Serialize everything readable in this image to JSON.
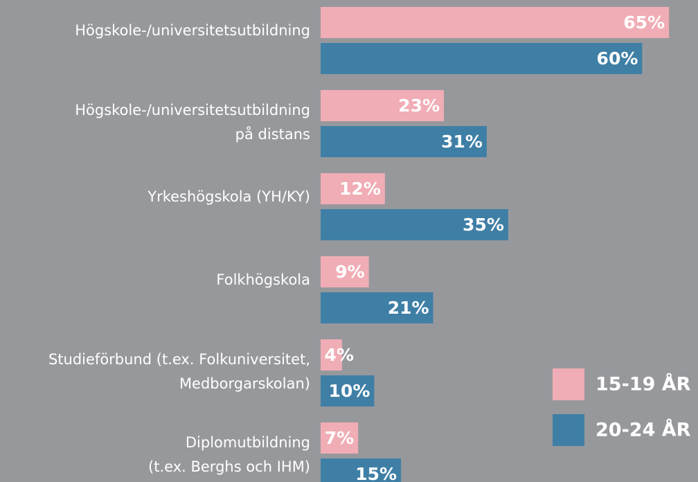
{
  "chart_data": {
    "type": "bar",
    "orientation": "horizontal",
    "categories": [
      [
        "Högskole-/universitetsutbildning"
      ],
      [
        "Högskole-/universitetsutbildning",
        "på distans"
      ],
      [
        "Yrkeshögskola (YH/KY)"
      ],
      [
        "Folkhögskola"
      ],
      [
        "Studieförbund (t.ex. Folkuniversitet,",
        "Medborgarskolan)"
      ],
      [
        "Diplomutbildning",
        "(t.ex. Berghs och IHM)"
      ]
    ],
    "series": [
      {
        "name": "15-19 ÅR",
        "color": "#f0adb5",
        "values": [
          65,
          23,
          12,
          9,
          4,
          7
        ],
        "value_labels": [
          "65%",
          "23%",
          "12%",
          "9%",
          "4%",
          "7%"
        ]
      },
      {
        "name": "20-24 ÅR",
        "color": "#3f7fa6",
        "values": [
          60,
          31,
          35,
          21,
          10,
          15
        ],
        "value_labels": [
          "60%",
          "31%",
          "35%",
          "21%",
          "10%",
          "15%"
        ]
      }
    ],
    "legend": "bottom-right"
  }
}
